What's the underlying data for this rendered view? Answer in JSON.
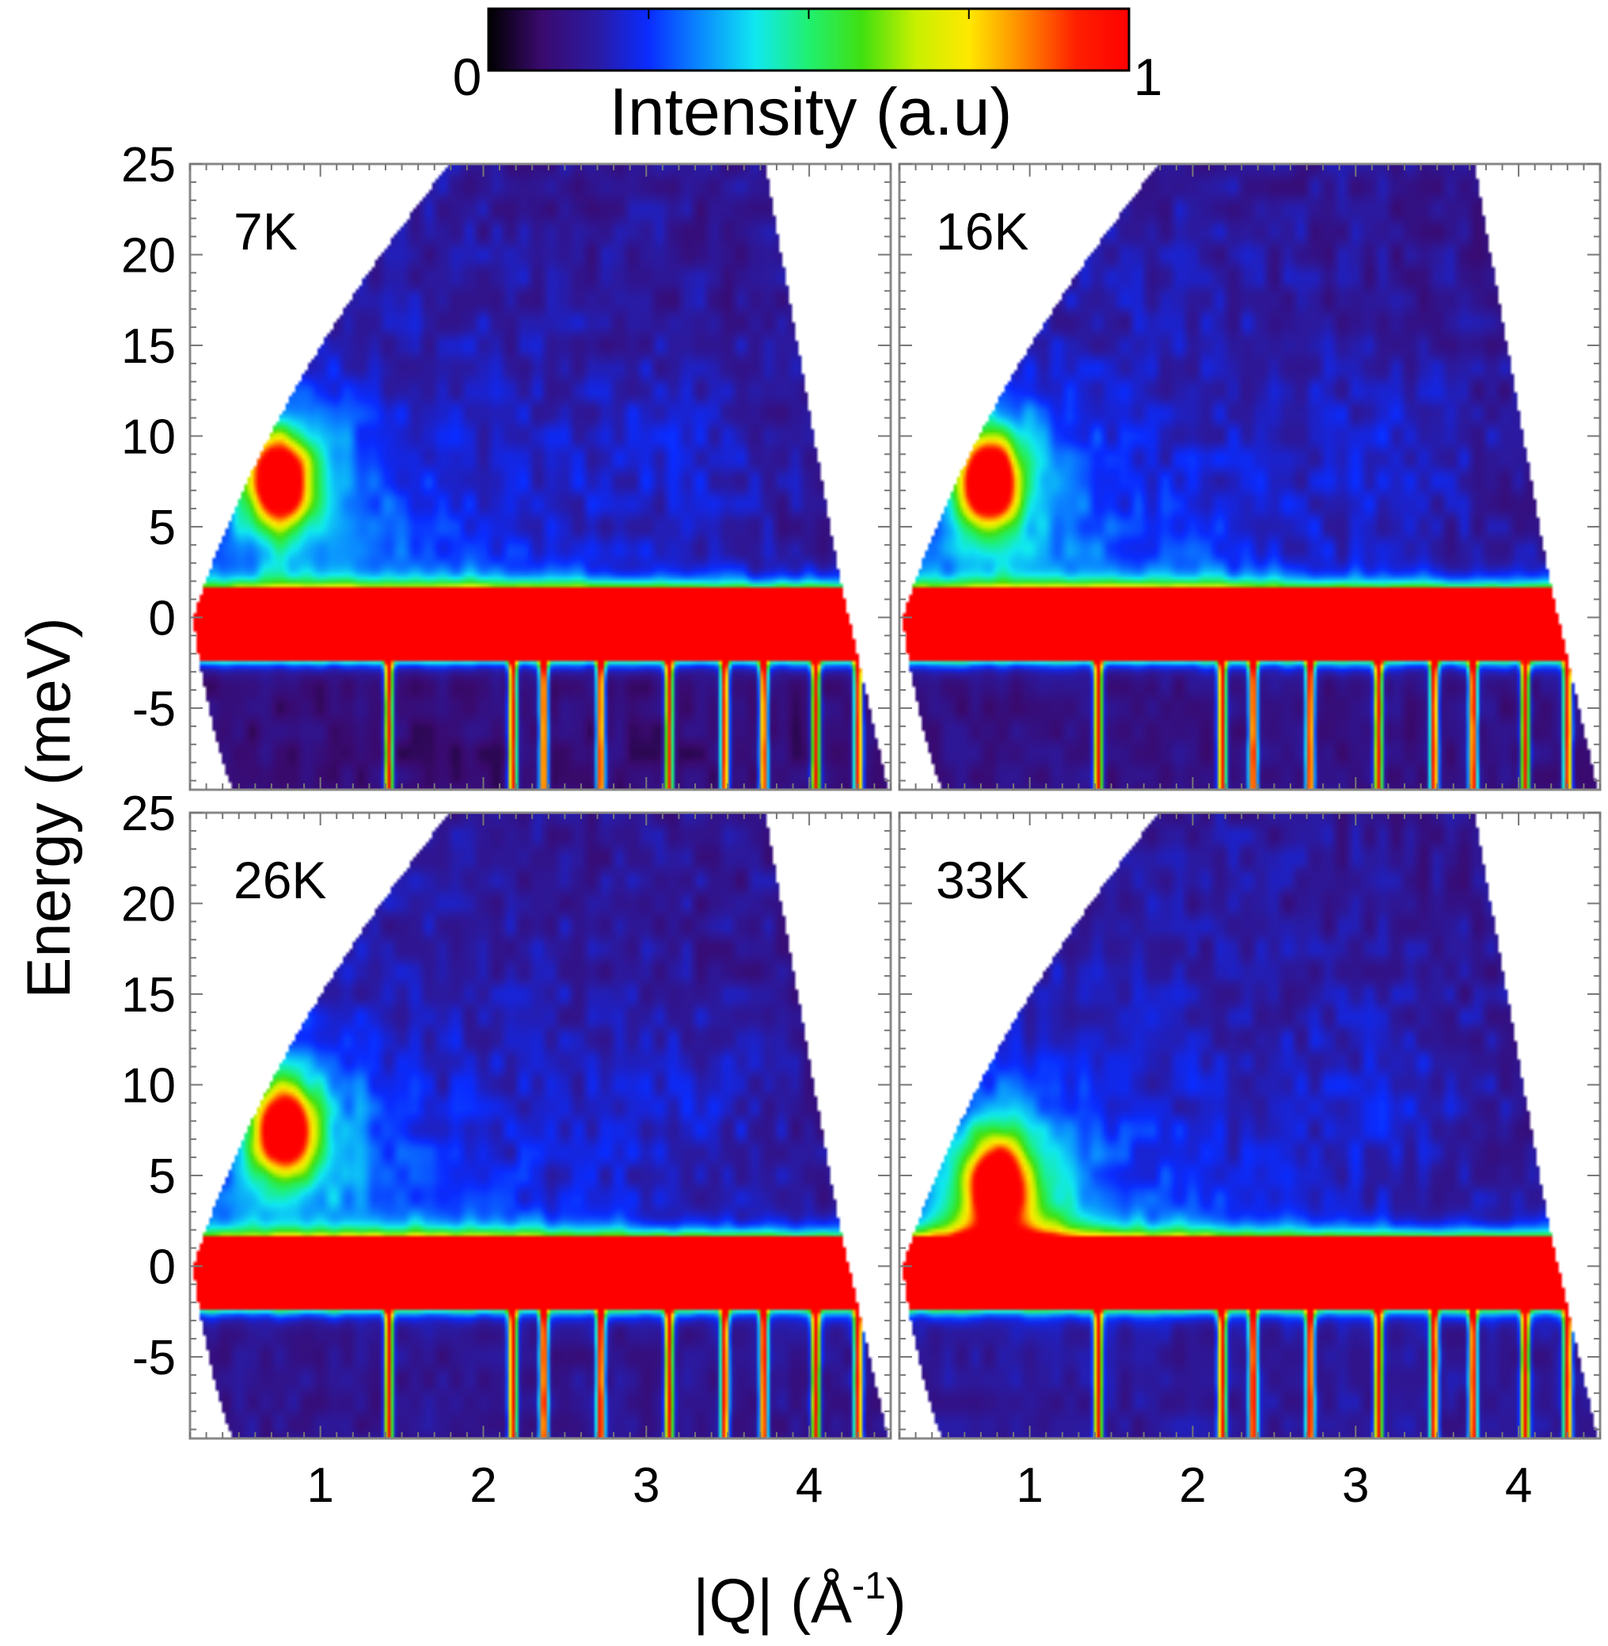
{
  "chart_data": {
    "type": "heatmap",
    "colorbar": {
      "title": "Intensity (a.u)",
      "min_label": "0",
      "max_label": "1",
      "range": [
        0,
        1
      ],
      "colors": [
        "#000000",
        "#3a0a6e",
        "#2b1aa0",
        "#0a2cff",
        "#0a8cff",
        "#10e8f0",
        "#20f070",
        "#40e010",
        "#c8f000",
        "#ffe800",
        "#ff8a00",
        "#ff2000",
        "#ff0000"
      ]
    },
    "xlabel": "|Q| (Å",
    "xlabel_sup": "-1",
    "xlabel_close": ")",
    "ylabel": "Energy (meV)",
    "xlim": [
      0.2,
      4.5
    ],
    "ylim": [
      -9.5,
      25
    ],
    "xticks": [
      1,
      2,
      3,
      4
    ],
    "xtick_labels": [
      "1",
      "2",
      "3",
      "4"
    ],
    "yticks": [
      -5,
      0,
      5,
      10,
      15,
      20,
      25
    ],
    "ytick_labels": [
      "-5",
      "0",
      "5",
      "10",
      "15",
      "20",
      "25"
    ],
    "elastic_band": {
      "energy_min": -2.3,
      "energy_max": 1.6
    },
    "bragg_q": [
      1.42,
      2.18,
      2.37,
      2.72,
      3.14,
      3.48,
      3.72,
      4.04,
      4.3
    ],
    "panels": [
      {
        "label": "7K",
        "temperature_K": 7,
        "spot": {
          "q": 0.75,
          "energy": 7.5,
          "peak": 1.0
        },
        "gapless": false
      },
      {
        "label": "16K",
        "temperature_K": 16,
        "spot": {
          "q": 0.75,
          "energy": 7.5,
          "peak": 1.0
        },
        "gapless": false
      },
      {
        "label": "26K",
        "temperature_K": 26,
        "spot": {
          "q": 0.78,
          "energy": 7.5,
          "peak": 0.95
        },
        "gapless": false
      },
      {
        "label": "33K",
        "temperature_K": 33,
        "spot": {
          "q": 0.8,
          "energy": 4.5,
          "peak": 0.85
        },
        "gapless": true
      }
    ]
  }
}
